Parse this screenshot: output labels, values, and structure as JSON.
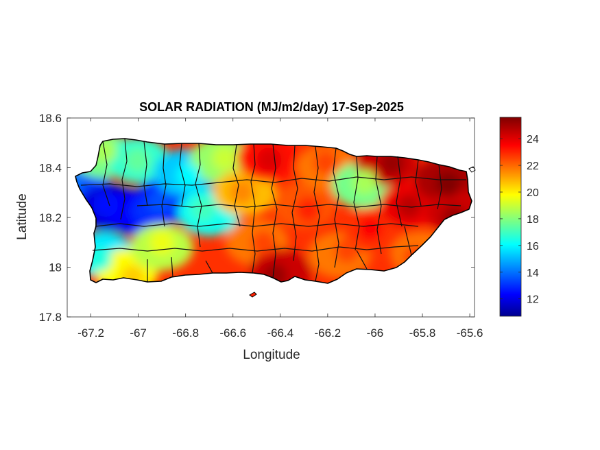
{
  "figure": {
    "title": "SOLAR RADIATION (MJ/m2/day) 17-Sep-2025",
    "xlabel": "Longitude",
    "ylabel": "Latitude"
  },
  "axes": {
    "xlim": [
      -67.3,
      -65.58
    ],
    "ylim": [
      17.8,
      18.6
    ],
    "xticks": [
      {
        "value": -67.2,
        "label": "-67.2"
      },
      {
        "value": -67.0,
        "label": "-67"
      },
      {
        "value": -66.8,
        "label": "-66.8"
      },
      {
        "value": -66.6,
        "label": "-66.6"
      },
      {
        "value": -66.4,
        "label": "-66.4"
      },
      {
        "value": -66.2,
        "label": "-66.2"
      },
      {
        "value": -66.0,
        "label": "-66"
      },
      {
        "value": -65.8,
        "label": "-65.8"
      },
      {
        "value": -65.6,
        "label": "-65.6"
      }
    ],
    "yticks": [
      {
        "value": 17.8,
        "label": "17.8"
      },
      {
        "value": 18.0,
        "label": "18"
      },
      {
        "value": 18.2,
        "label": "18.2"
      },
      {
        "value": 18.4,
        "label": "18.4"
      },
      {
        "value": 18.6,
        "label": "18.6"
      }
    ]
  },
  "colorbar": {
    "colormap": "jet",
    "range": [
      10.7,
      25.6
    ],
    "ticks": [
      {
        "value": 12,
        "label": "12"
      },
      {
        "value": 14,
        "label": "14"
      },
      {
        "value": 16,
        "label": "16"
      },
      {
        "value": 18,
        "label": "18"
      },
      {
        "value": 20,
        "label": "20"
      },
      {
        "value": 22,
        "label": "22"
      },
      {
        "value": 24,
        "label": "24"
      }
    ]
  },
  "chart_data": {
    "type": "heatmap",
    "title": "SOLAR RADIATION (MJ/m2/day) 17-Sep-2025",
    "xlabel": "Longitude",
    "ylabel": "Latitude",
    "xlim": [
      -67.3,
      -65.58
    ],
    "ylim": [
      17.8,
      18.6
    ],
    "units": "MJ/m2/day",
    "value_range": [
      10.7,
      25.6
    ],
    "region": "Puerto Rico",
    "sample_points": [
      {
        "lon": -67.25,
        "lat": 18.33,
        "value": 13.5
      },
      {
        "lon": -67.15,
        "lat": 18.45,
        "value": 18.0
      },
      {
        "lon": -67.12,
        "lat": 18.24,
        "value": 12.0
      },
      {
        "lon": -67.0,
        "lat": 18.22,
        "value": 12.5
      },
      {
        "lon": -67.0,
        "lat": 18.43,
        "value": 17.0
      },
      {
        "lon": -66.88,
        "lat": 18.27,
        "value": 13.0
      },
      {
        "lon": -66.8,
        "lat": 18.38,
        "value": 15.5
      },
      {
        "lon": -67.15,
        "lat": 18.05,
        "value": 16.0
      },
      {
        "lon": -67.05,
        "lat": 17.98,
        "value": 20.0
      },
      {
        "lon": -66.9,
        "lat": 18.08,
        "value": 19.0
      },
      {
        "lon": -66.7,
        "lat": 18.22,
        "value": 16.5
      },
      {
        "lon": -66.65,
        "lat": 18.43,
        "value": 18.5
      },
      {
        "lon": -66.55,
        "lat": 18.3,
        "value": 21.0
      },
      {
        "lon": -66.5,
        "lat": 18.1,
        "value": 22.0
      },
      {
        "lon": -66.45,
        "lat": 18.44,
        "value": 23.5
      },
      {
        "lon": -66.4,
        "lat": 17.98,
        "value": 24.5
      },
      {
        "lon": -66.3,
        "lat": 18.25,
        "value": 22.5
      },
      {
        "lon": -66.2,
        "lat": 18.4,
        "value": 22.0
      },
      {
        "lon": -66.15,
        "lat": 18.05,
        "value": 22.0
      },
      {
        "lon": -66.05,
        "lat": 18.33,
        "value": 18.0
      },
      {
        "lon": -66.0,
        "lat": 18.15,
        "value": 23.0
      },
      {
        "lon": -65.95,
        "lat": 18.42,
        "value": 24.5
      },
      {
        "lon": -65.85,
        "lat": 18.25,
        "value": 24.0
      },
      {
        "lon": -65.8,
        "lat": 18.05,
        "value": 22.0
      },
      {
        "lon": -65.7,
        "lat": 18.35,
        "value": 25.0
      },
      {
        "lon": -65.65,
        "lat": 18.22,
        "value": 24.5
      }
    ]
  }
}
